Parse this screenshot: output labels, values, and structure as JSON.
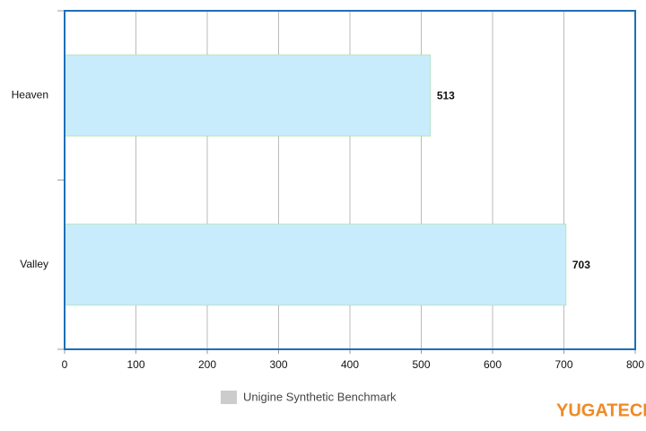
{
  "chart_data": {
    "type": "hbar",
    "categories": [
      "Heaven",
      "Valley"
    ],
    "series": [
      {
        "name": "Unigine Synthetic Benchmark",
        "color": "#c8ecfc",
        "values": [
          513,
          703
        ]
      }
    ],
    "legend_swatch_color": "#cccccc",
    "xlim": [
      0,
      800
    ],
    "xticks": [
      0,
      100,
      200,
      300,
      400,
      500,
      600,
      700,
      800
    ],
    "grid": true,
    "legend": "bottom",
    "watermark": "YUGATECH"
  }
}
